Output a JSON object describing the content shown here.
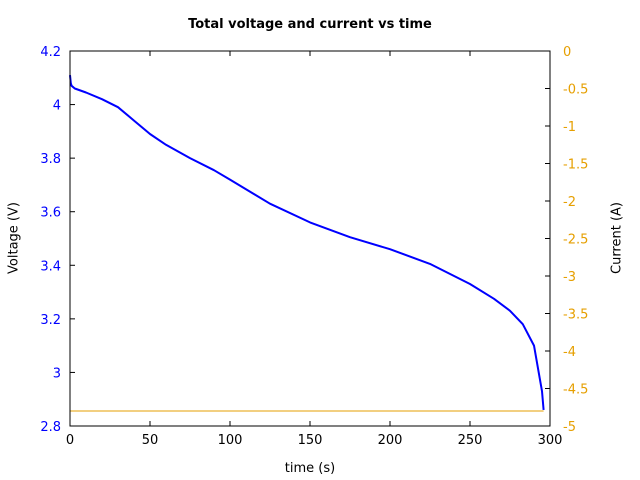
{
  "chart_data": {
    "type": "line",
    "title": "Total voltage and current vs time",
    "xlabel": "time (s)",
    "ylabel": "Voltage (V)",
    "y2label": "Current (A)",
    "xlim": [
      0,
      300
    ],
    "ylim": [
      2.8,
      4.2
    ],
    "y2lim": [
      -5,
      0
    ],
    "grid": false,
    "legend": null,
    "x_ticks": [
      "0",
      "50",
      "100",
      "150",
      "200",
      "250",
      "300"
    ],
    "y_ticks": [
      "2.8",
      "3",
      "3.2",
      "3.4",
      "3.6",
      "3.8",
      "4",
      "4.2"
    ],
    "y2_ticks": [
      "-5",
      "-4.5",
      "-4",
      "-3.5",
      "-3",
      "-2.5",
      "-2",
      "-1.5",
      "-1",
      "-0.5",
      "0"
    ],
    "colors": {
      "voltage": "#0000ff",
      "current": "#e69f00",
      "left_axis_text": "#0000ff",
      "right_axis_text": "#e69f00"
    },
    "series": [
      {
        "name": "Voltage",
        "axis": "left",
        "x": [
          0,
          0.5,
          1,
          3,
          10,
          20,
          30,
          40,
          50,
          60,
          75,
          90,
          100,
          125,
          150,
          175,
          200,
          225,
          250,
          265,
          275,
          283,
          290,
          295,
          296
        ],
        "values": [
          4.11,
          4.08,
          4.07,
          4.06,
          4.045,
          4.02,
          3.99,
          3.94,
          3.89,
          3.85,
          3.8,
          3.755,
          3.72,
          3.63,
          3.56,
          3.505,
          3.46,
          3.405,
          3.33,
          3.275,
          3.23,
          3.18,
          3.1,
          2.93,
          2.86
        ]
      },
      {
        "name": "Current",
        "axis": "right",
        "x": [
          0,
          296
        ],
        "values": [
          -4.8,
          -4.8
        ]
      }
    ]
  }
}
